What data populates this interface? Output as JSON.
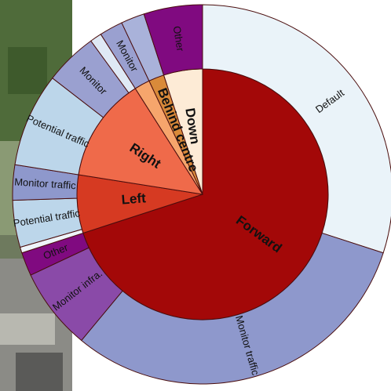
{
  "chart_data": {
    "type": "sunburst",
    "segments": [
      {
        "name": "Forward",
        "color": "#a30808",
        "value": 70,
        "children": [
          {
            "name": "Default",
            "color": "#eaf3f9",
            "value": 30
          },
          {
            "name": "Monitor traffic",
            "color": "#8e98cc",
            "value": 31
          },
          {
            "name": "Monitor infra.",
            "color": "#8a4aa8",
            "value": 7
          },
          {
            "name": "Other",
            "color": "#800a80",
            "value": 2
          }
        ]
      },
      {
        "name": "Left",
        "color": "#d63a22",
        "value": 7.5,
        "children": [
          {
            "name": null,
            "color": "#eef4fa",
            "value": 0.5
          },
          {
            "name": "Potential traffic",
            "color": "#bcd6ea",
            "value": 4
          },
          {
            "name": "Monitor traffic",
            "color": "#8e98cc",
            "value": 3
          }
        ]
      },
      {
        "name": "Right",
        "color": "#ef6a4a",
        "value": 13.5,
        "children": [
          {
            "name": "Potential traffic",
            "color": "#bcd6ea",
            "value": 8
          },
          {
            "name": "Monitor",
            "color": "#9aa0d0",
            "value": 4.5
          },
          {
            "name": null,
            "color": "#dfe9f5",
            "value": 1
          }
        ]
      },
      {
        "name": null,
        "color": "#f6a56c",
        "value": 2,
        "children": [
          {
            "name": "Monitor",
            "color": "#9aa0d0",
            "value": 2
          }
        ]
      },
      {
        "name": "Behind centre",
        "color": "#d98a3a",
        "value": 2,
        "children": [
          {
            "name": null,
            "color": "#a9b2da",
            "value": 2
          }
        ]
      },
      {
        "name": "Down",
        "color": "#fdebd6",
        "value": 5,
        "children": [
          {
            "name": "Other",
            "color": "#800a80",
            "value": 5
          }
        ]
      }
    ]
  }
}
